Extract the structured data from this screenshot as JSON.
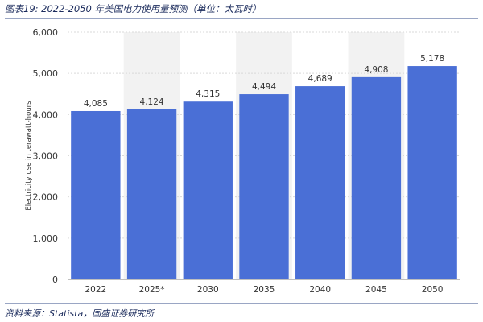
{
  "header": {
    "title": "图表19:  2022-2050 年美国电力使用量预测（单位：太瓦时）"
  },
  "footer": {
    "source": "资料来源：Statista，国盛证券研究所"
  },
  "colors": {
    "bar": "#4a6fd6",
    "grid": "#d9d9d9",
    "band": "#f2f2f2",
    "text": "#333333",
    "accent": "#1b2b5c"
  },
  "chart_data": {
    "type": "bar",
    "title": "",
    "xlabel": "",
    "ylabel": "Electricity use in terawatt-hours",
    "categories": [
      "2022",
      "2025*",
      "2030",
      "2035",
      "2040",
      "2045",
      "2050"
    ],
    "values": [
      4085,
      4124,
      4315,
      4494,
      4689,
      4908,
      5178
    ],
    "value_labels": [
      "4,085",
      "4,124",
      "4,315",
      "4,494",
      "4,689",
      "4,908",
      "5,178"
    ],
    "ylim": [
      0,
      6000
    ],
    "yticks": [
      0,
      1000,
      2000,
      3000,
      4000,
      5000,
      6000
    ],
    "ytick_labels": [
      "0",
      "1,000",
      "2,000",
      "3,000",
      "4,000",
      "5,000",
      "6,000"
    ],
    "grid": true,
    "forecast_shading_categories": [
      "2025*",
      "2035",
      "2045"
    ]
  }
}
